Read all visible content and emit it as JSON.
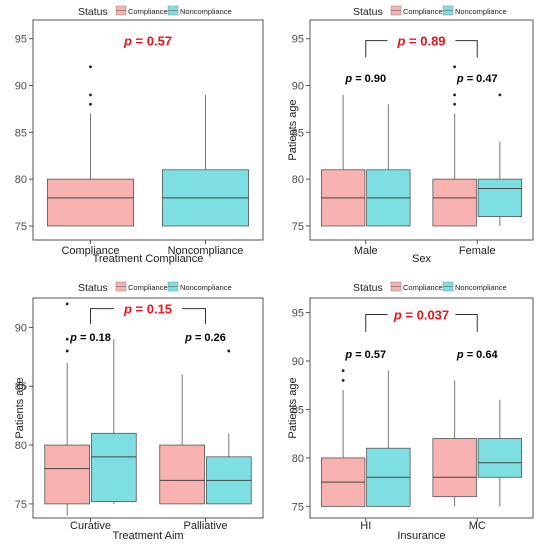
{
  "colors": {
    "compliance": "#F8B3B0",
    "noncompliance": "#7EDFE2",
    "pvalue_main": "#E8141C",
    "pvalue_sub": "#000000",
    "axis": "#555555",
    "box_stroke": "#555555"
  },
  "chart_data": [
    {
      "type": "box",
      "legend": {
        "title": "Status",
        "entries": [
          "Compliance",
          "Noncompliance"
        ],
        "placement": "top"
      },
      "xlabel": "Treatment Compliance",
      "ylabel": "",
      "ylim": [
        73.5,
        97
      ],
      "yticks": [
        75,
        80,
        85,
        90,
        95
      ],
      "grid": false,
      "categories": [
        "Compliance",
        "Noncompliance"
      ],
      "boxes": [
        {
          "category": "Compliance",
          "series": "Compliance",
          "whisker_low": 75,
          "q1": 75,
          "median": 78,
          "q3": 80,
          "whisker_high": 87,
          "outliers": [
            88,
            89,
            92
          ]
        },
        {
          "category": "Noncompliance",
          "series": "Noncompliance",
          "whisker_low": 75,
          "q1": 75,
          "median": 78,
          "q3": 81,
          "whisker_high": 89,
          "outliers": []
        }
      ],
      "annotations": [
        {
          "text": "p = 0.57",
          "style": "main",
          "x_between": [
            0,
            1
          ],
          "y": 94.8,
          "bracket": false
        }
      ]
    },
    {
      "type": "box",
      "legend": {
        "title": "Status",
        "entries": [
          "Compliance",
          "Noncompliance"
        ],
        "placement": "top"
      },
      "xlabel": "Sex",
      "ylabel": "Patients age",
      "ylim": [
        73.5,
        97
      ],
      "yticks": [
        75,
        80,
        85,
        90,
        95
      ],
      "grid": false,
      "categories": [
        "Male",
        "Female"
      ],
      "boxes": [
        {
          "category": "Male",
          "series": "Compliance",
          "whisker_low": 75,
          "q1": 75,
          "median": 78,
          "q3": 81,
          "whisker_high": 89,
          "outliers": []
        },
        {
          "category": "Male",
          "series": "Noncompliance",
          "whisker_low": 75,
          "q1": 75,
          "median": 78,
          "q3": 81,
          "whisker_high": 88,
          "outliers": []
        },
        {
          "category": "Female",
          "series": "Compliance",
          "whisker_low": 75,
          "q1": 75,
          "median": 78,
          "q3": 80,
          "whisker_high": 87,
          "outliers": [
            88,
            89,
            92
          ]
        },
        {
          "category": "Female",
          "series": "Noncompliance",
          "whisker_low": 75,
          "q1": 76,
          "median": 79,
          "q3": 80,
          "whisker_high": 84,
          "outliers": [
            89
          ]
        }
      ],
      "annotations": [
        {
          "text": "p = 0.89",
          "style": "main",
          "x_between": [
            0,
            1
          ],
          "y": 94.8,
          "bracket": true,
          "bracket_drop": 1.8
        },
        {
          "text": "p = 0.90",
          "style": "sub",
          "x_between": [
            0,
            0
          ],
          "y": 90.8,
          "bracket": false
        },
        {
          "text": "p = 0.47",
          "style": "sub",
          "x_between": [
            1,
            1
          ],
          "y": 90.8,
          "bracket": false
        }
      ]
    },
    {
      "type": "box",
      "legend": {
        "title": "Status",
        "entries": [
          "Compliance",
          "Noncompliance"
        ],
        "placement": "top"
      },
      "xlabel": "Treatment Aim",
      "ylabel": "Patients age",
      "ylim": [
        73.8,
        92.5
      ],
      "yticks": [
        75,
        80,
        85,
        90
      ],
      "grid": false,
      "categories": [
        "Curative",
        "Palliative"
      ],
      "boxes": [
        {
          "category": "Curative",
          "series": "Compliance",
          "whisker_low": 74,
          "q1": 75,
          "median": 78,
          "q3": 80,
          "whisker_high": 87,
          "outliers": [
            88,
            89,
            92
          ]
        },
        {
          "category": "Curative",
          "series": "Noncompliance",
          "whisker_low": 75,
          "q1": 75.2,
          "median": 79,
          "q3": 81,
          "whisker_high": 89,
          "outliers": []
        },
        {
          "category": "Palliative",
          "series": "Compliance",
          "whisker_low": 75,
          "q1": 75,
          "median": 77,
          "q3": 80,
          "whisker_high": 86,
          "outliers": []
        },
        {
          "category": "Palliative",
          "series": "Noncompliance",
          "whisker_low": 75,
          "q1": 75,
          "median": 77,
          "q3": 79,
          "whisker_high": 81,
          "outliers": [
            88
          ]
        }
      ],
      "annotations": [
        {
          "text": "p = 0.15",
          "style": "main",
          "x_between": [
            0,
            1
          ],
          "y": 91.6,
          "bracket": true,
          "bracket_drop": 1.3
        },
        {
          "text": "p = 0.18",
          "style": "sub",
          "x_between": [
            0,
            0
          ],
          "y": 89.2,
          "bracket": false
        },
        {
          "text": "p = 0.26",
          "style": "sub",
          "x_between": [
            1,
            1
          ],
          "y": 89.2,
          "bracket": false
        }
      ]
    },
    {
      "type": "box",
      "legend": {
        "title": "Status",
        "entries": [
          "Compliance",
          "Noncompliance"
        ],
        "placement": "top"
      },
      "xlabel": "Insurance",
      "ylabel": "Patients age",
      "ylim": [
        73.8,
        96.5
      ],
      "yticks": [
        75,
        80,
        85,
        90,
        95
      ],
      "grid": false,
      "categories": [
        "HI",
        "MC"
      ],
      "boxes": [
        {
          "category": "HI",
          "series": "Compliance",
          "whisker_low": 75,
          "q1": 75,
          "median": 77.5,
          "q3": 80,
          "whisker_high": 87,
          "outliers": [
            88,
            89
          ]
        },
        {
          "category": "HI",
          "series": "Noncompliance",
          "whisker_low": 75,
          "q1": 75,
          "median": 78,
          "q3": 81,
          "whisker_high": 89,
          "outliers": []
        },
        {
          "category": "MC",
          "series": "Compliance",
          "whisker_low": 75,
          "q1": 76,
          "median": 78,
          "q3": 82,
          "whisker_high": 88,
          "outliers": []
        },
        {
          "category": "MC",
          "series": "Noncompliance",
          "whisker_low": 75,
          "q1": 78,
          "median": 79.5,
          "q3": 82,
          "whisker_high": 86,
          "outliers": []
        }
      ],
      "annotations": [
        {
          "text": "p = 0.037",
          "style": "main",
          "x_between": [
            0,
            1
          ],
          "y": 94.8,
          "bracket": true,
          "bracket_drop": 1.8
        },
        {
          "text": "p = 0.57",
          "style": "sub",
          "x_between": [
            0,
            0
          ],
          "y": 90.7,
          "bracket": false
        },
        {
          "text": "p = 0.64",
          "style": "sub",
          "x_between": [
            1,
            1
          ],
          "y": 90.7,
          "bracket": false
        }
      ]
    }
  ]
}
